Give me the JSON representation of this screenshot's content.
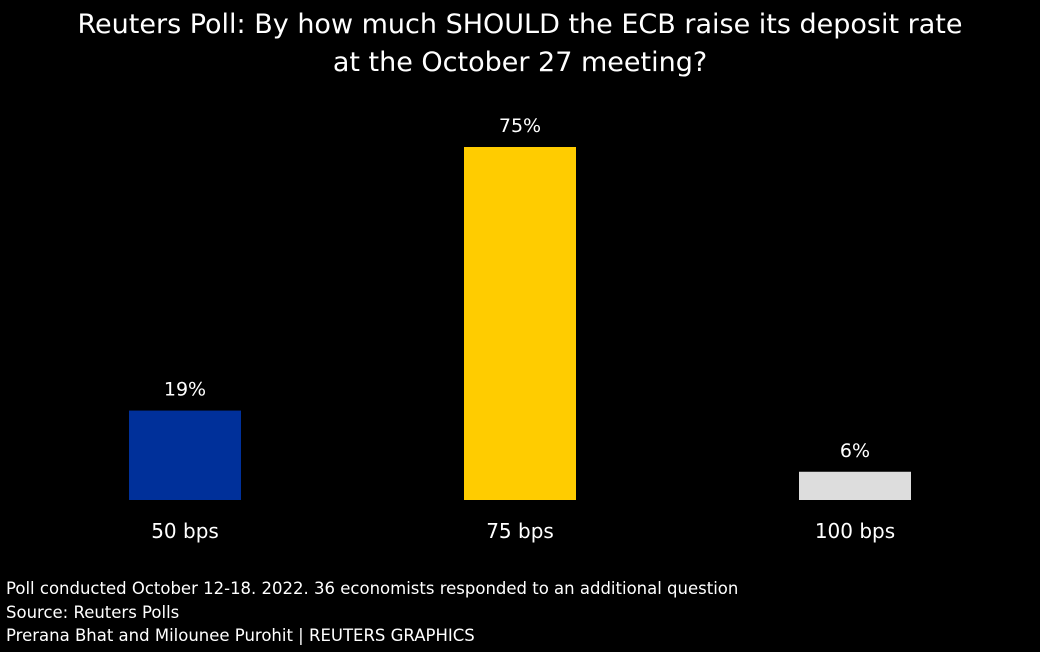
{
  "chart_data": {
    "type": "bar",
    "title_lines": [
      "Reuters Poll: By how much SHOULD the ECB raise its deposit rate",
      "at the October 27 meeting?"
    ],
    "categories": [
      "50 bps",
      "75 bps",
      "100 bps"
    ],
    "values": [
      19,
      75,
      6
    ],
    "value_labels": [
      "19%",
      "75%",
      "6%"
    ],
    "colors": [
      "#00309a",
      "#ffcc00",
      "#dddddd"
    ],
    "ylim": [
      0,
      75
    ],
    "grid": false,
    "xlabel": "",
    "ylabel": ""
  },
  "footer": {
    "note": "Poll conducted October 12-18. 2022. 36 economists responded to an additional question",
    "source": "Source: Reuters Polls",
    "credit": "Prerana Bhat and Milounee Purohit | REUTERS GRAPHICS"
  }
}
